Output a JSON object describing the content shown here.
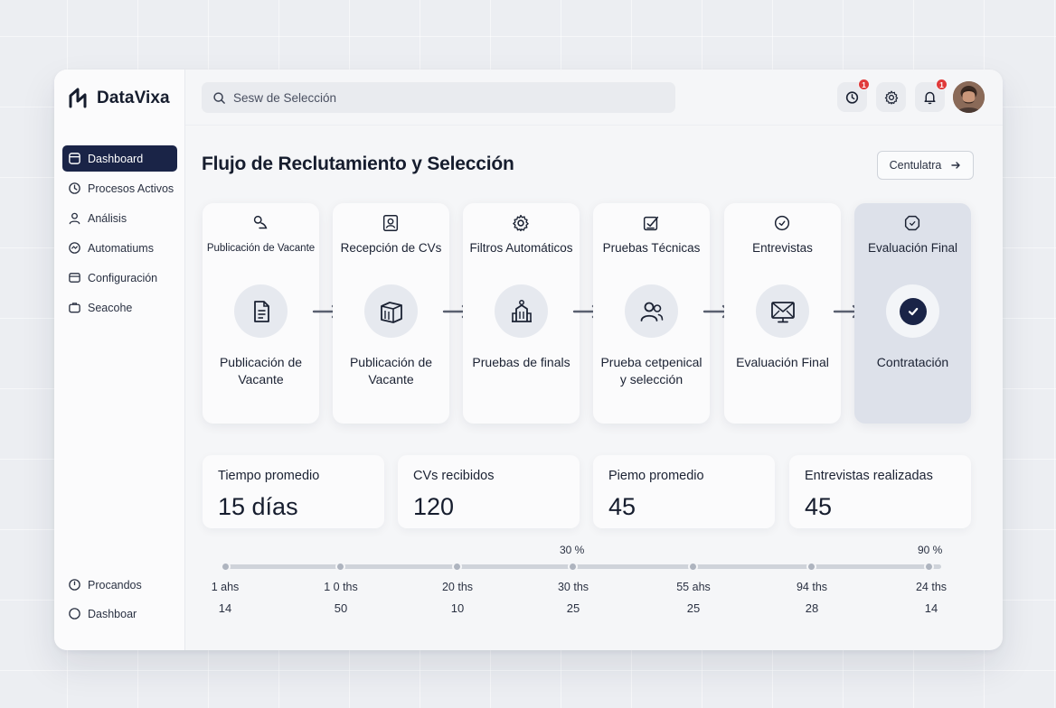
{
  "app": {
    "name": "DataVixa"
  },
  "search": {
    "placeholder": "Sesw de Selección"
  },
  "topbar": {
    "notif_badge_1": "1",
    "notif_badge_2": "1"
  },
  "sidebar": {
    "items": [
      {
        "label": "Dashboard",
        "icon": "dashboard-icon",
        "active": true
      },
      {
        "label": "Procesos Activos",
        "icon": "clock-icon"
      },
      {
        "label": "Análisis",
        "icon": "user-icon"
      },
      {
        "label": "Automatiums",
        "icon": "automation-icon"
      },
      {
        "label": "Configuración",
        "icon": "config-icon"
      },
      {
        "label": "Seacohe",
        "icon": "briefcase-icon"
      }
    ],
    "bottom_items": [
      {
        "label": "Procandos",
        "icon": "clock-icon"
      },
      {
        "label": "Dashboar",
        "icon": "circle-icon"
      }
    ]
  },
  "page": {
    "title": "Flujo de Reclutamiento y Selección",
    "cta_label": "Centulatra"
  },
  "stages": [
    {
      "title": "Publicación de Vacante",
      "sub": "Publicación de Vacante",
      "top_icon": "megaphone-icon",
      "main_icon": "document-icon"
    },
    {
      "title": "Recepción de CVs",
      "sub": "Publicación de Vacante",
      "top_icon": "id-card-icon",
      "main_icon": "box-icon"
    },
    {
      "title": "Filtros Automáticos",
      "sub": "Pruebas de finals",
      "top_icon": "gear-icon",
      "main_icon": "building-icon"
    },
    {
      "title": "Pruebas Técnicas",
      "sub": "Prueba cetpenical y selección",
      "top_icon": "checklist-icon",
      "main_icon": "users-icon"
    },
    {
      "title": "Entrevistas",
      "sub": "Evaluación Final",
      "top_icon": "clock-icon",
      "main_icon": "monitor-mail-icon"
    },
    {
      "title": "Evaluación Final",
      "sub": "Contratación",
      "top_icon": "badge-icon",
      "main_icon": "check-icon"
    }
  ],
  "stats": [
    {
      "label": "Tiempo promedio",
      "value": "15 días"
    },
    {
      "label": "CVs recibidos",
      "value": "120"
    },
    {
      "label": "Piemo promedio",
      "value": "45"
    },
    {
      "label": "Entrevistas realizadas",
      "value": "45"
    }
  ],
  "timeline": {
    "pct_labels": [
      "30 %",
      "90 %"
    ],
    "points": [
      {
        "label": "1 ahs",
        "value": "14"
      },
      {
        "label": "1 0 ths",
        "value": "50"
      },
      {
        "label": "20 ths",
        "value": "10"
      },
      {
        "label": "30 ths",
        "value": "25"
      },
      {
        "label": "55 ahs",
        "value": "25"
      },
      {
        "label": "94 ths",
        "value": "28"
      },
      {
        "label": "24 ths",
        "value": "14"
      }
    ]
  }
}
